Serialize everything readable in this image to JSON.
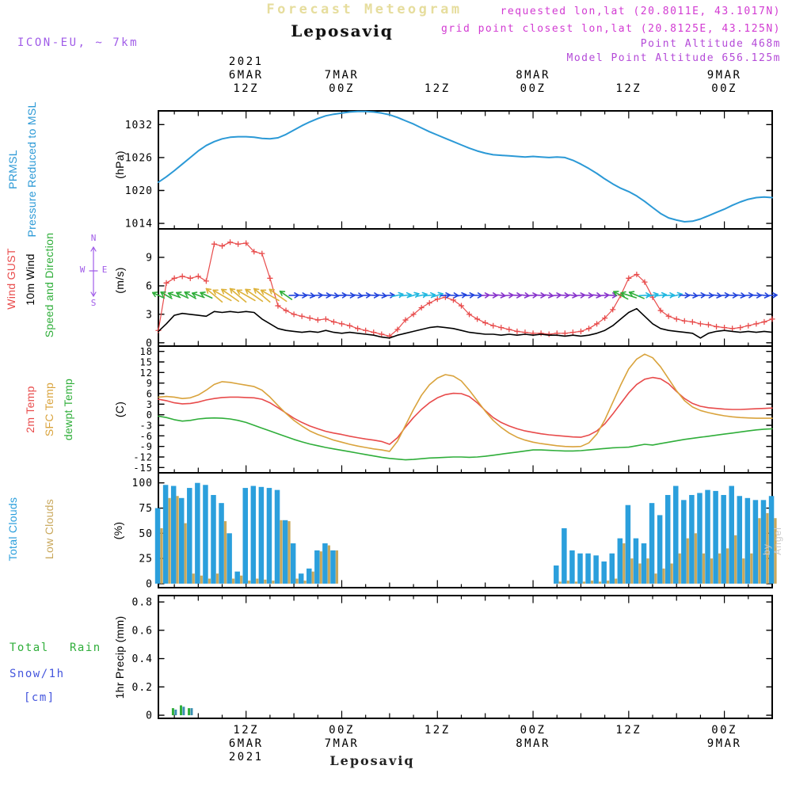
{
  "header": {
    "app_title": "Forecast Meteogram",
    "station": "Leposaviq",
    "model": "ICON-EU, ~ 7km",
    "requested": "requested lon,lat (20.8011E, 43.1017N)",
    "grid_point": "grid point closest lon,lat (20.8125E, 43.125N)",
    "point_altitude": "Point Altitude 468m",
    "model_point_altitude": "Model Point Altitude 656.125m"
  },
  "footer": {
    "station": "Leposaviq"
  },
  "watermark": "by Angel",
  "panel_labels": {
    "pressure": {
      "l1": "PRMSL",
      "l2": "Pressure Reduced to MSL",
      "unit": "(hPa)"
    },
    "wind": {
      "l1": "Wind GUST",
      "l2": "10m Wind",
      "l3": "Speed and Direction",
      "unit": "(m/s)",
      "compass": {
        "n": "N",
        "s": "S",
        "w": "W",
        "e": "E"
      }
    },
    "temp": {
      "l1": "2m Temp",
      "l2": "SFC Temp",
      "l3": "dewpt Temp",
      "unit": "(C)"
    },
    "clouds": {
      "l1": "Total Clouds",
      "l2": "Low Clouds",
      "unit": "(%)"
    },
    "precip": {
      "l1": "Total",
      "l2": "Rain",
      "l3": "Snow/1h",
      "l4": "[cm]",
      "unit": "1hr Precip (mm)"
    }
  },
  "colors": {
    "pressure": "#2b99d6",
    "gust": "#e84b4b",
    "wind10m": "#000000",
    "wind_dir_label": "#2fae3a",
    "t2m": "#e84b4b",
    "sfc": "#d9a33c",
    "dewpt": "#2fae3a",
    "total_clouds": "#2b9fdc",
    "low_clouds": "#c9a85c",
    "rain": "#2fae3a",
    "snow": "#3a8fb0",
    "snow_label": "#4455dd",
    "magenta": "#d23bd2",
    "purple": "#b44ad8",
    "model_tag": "#a05ce8",
    "app_title": "#e6dd9d",
    "compass": "#a05ce8",
    "watermark": "#c9c9c9",
    "axis": "#000000"
  },
  "chart_data": {
    "type": "line",
    "subtype": "multi-panel-meteogram",
    "title": "Forecast Meteogram - Leposaviq",
    "x_axis": {
      "start": "6MAR2021 01Z",
      "end": "9MAR2021 06Z",
      "step_hours": 1,
      "n": 78
    },
    "top_axis": [
      {
        "t": 12,
        "lines": [
          "2021",
          "6MAR",
          "12Z"
        ]
      },
      {
        "t": 24,
        "lines": [
          "7MAR",
          "00Z"
        ]
      },
      {
        "t": 36,
        "lines": [
          "12Z"
        ]
      },
      {
        "t": 48,
        "lines": [
          "8MAR",
          "00Z"
        ]
      },
      {
        "t": 60,
        "lines": [
          "12Z"
        ]
      },
      {
        "t": 72,
        "lines": [
          "9MAR",
          "00Z"
        ]
      }
    ],
    "bottom_axis": [
      {
        "t": 12,
        "lines": [
          "12Z",
          "6MAR",
          "2021"
        ]
      },
      {
        "t": 24,
        "lines": [
          "00Z",
          "7MAR"
        ]
      },
      {
        "t": 36,
        "lines": [
          "12Z"
        ]
      },
      {
        "t": 48,
        "lines": [
          "00Z",
          "8MAR"
        ]
      },
      {
        "t": 60,
        "lines": [
          "12Z"
        ]
      },
      {
        "t": 72,
        "lines": [
          "00Z",
          "9MAR"
        ]
      }
    ],
    "panels": {
      "pressure": {
        "ylabel": "(hPa)",
        "ticks": [
          1014,
          1020,
          1026,
          1032
        ],
        "ylim": [
          1013.0,
          1034.5
        ],
        "series": [
          {
            "name": "PRMSL",
            "color": "#2b99d6",
            "values": [
              1021.5,
              1022.5,
              1023.6,
              1024.8,
              1026.0,
              1027.2,
              1028.2,
              1028.9,
              1029.4,
              1029.7,
              1029.8,
              1029.8,
              1029.7,
              1029.5,
              1029.4,
              1029.6,
              1030.2,
              1031.0,
              1031.8,
              1032.5,
              1033.1,
              1033.6,
              1033.9,
              1034.1,
              1034.3,
              1034.4,
              1034.4,
              1034.3,
              1034.1,
              1033.8,
              1033.3,
              1032.7,
              1032.1,
              1031.4,
              1030.7,
              1030.1,
              1029.5,
              1028.9,
              1028.3,
              1027.7,
              1027.2,
              1026.8,
              1026.5,
              1026.4,
              1026.3,
              1026.2,
              1026.1,
              1026.2,
              1026.1,
              1026.0,
              1026.1,
              1026.0,
              1025.5,
              1024.8,
              1024.0,
              1023.1,
              1022.1,
              1021.2,
              1020.4,
              1019.8,
              1019.0,
              1018.0,
              1016.9,
              1015.8,
              1015.0,
              1014.6,
              1014.3,
              1014.4,
              1014.8,
              1015.4,
              1016.0,
              1016.6,
              1017.3,
              1017.9,
              1018.4,
              1018.7,
              1018.8,
              1018.7
            ]
          }
        ]
      },
      "wind": {
        "ylabel": "(m/s)",
        "ticks": [
          0,
          3,
          6,
          9
        ],
        "ylim": [
          -0.35,
          12.0
        ],
        "series": [
          {
            "name": "Wind GUST",
            "color": "#e84b4b",
            "marker": "plus",
            "values": [
              1.3,
              6.3,
              6.8,
              7.0,
              6.8,
              7.0,
              6.5,
              10.4,
              10.2,
              10.6,
              10.4,
              10.5,
              9.6,
              9.4,
              6.8,
              3.9,
              3.4,
              3.0,
              2.8,
              2.6,
              2.4,
              2.5,
              2.2,
              2.0,
              1.8,
              1.5,
              1.3,
              1.1,
              0.9,
              0.7,
              1.4,
              2.4,
              3.0,
              3.7,
              4.2,
              4.6,
              4.8,
              4.5,
              3.9,
              3.0,
              2.5,
              2.1,
              1.8,
              1.6,
              1.4,
              1.2,
              1.1,
              1.0,
              1.0,
              0.9,
              1.0,
              1.0,
              1.1,
              1.2,
              1.5,
              2.0,
              2.6,
              3.5,
              5.0,
              6.8,
              7.2,
              6.4,
              4.8,
              3.4,
              2.8,
              2.5,
              2.3,
              2.2,
              2.0,
              1.9,
              1.7,
              1.6,
              1.5,
              1.6,
              1.8,
              2.0,
              2.2,
              2.5
            ]
          },
          {
            "name": "10m Wind",
            "color": "#000000",
            "values": [
              1.2,
              2.0,
              2.9,
              3.1,
              3.0,
              2.9,
              2.8,
              3.3,
              3.2,
              3.3,
              3.2,
              3.3,
              3.2,
              2.5,
              2.0,
              1.5,
              1.3,
              1.2,
              1.1,
              1.2,
              1.1,
              1.3,
              1.1,
              1.0,
              1.1,
              1.0,
              0.9,
              0.8,
              0.6,
              0.5,
              0.8,
              1.0,
              1.2,
              1.4,
              1.6,
              1.7,
              1.6,
              1.5,
              1.3,
              1.1,
              1.0,
              0.9,
              0.9,
              0.8,
              0.9,
              0.8,
              0.9,
              0.8,
              0.9,
              0.8,
              0.8,
              0.7,
              0.8,
              0.7,
              0.8,
              1.0,
              1.3,
              1.8,
              2.5,
              3.2,
              3.6,
              2.8,
              2.0,
              1.5,
              1.3,
              1.2,
              1.1,
              1.0,
              0.5,
              1.0,
              1.2,
              1.3,
              1.2,
              1.1,
              1.2,
              1.1,
              1.2,
              1.1
            ]
          }
        ],
        "direction_arrows": {
          "y_value": 5,
          "segments": [
            {
              "from": 1,
              "to": 7,
              "color": "#2fae3a",
              "rot": 205,
              "len": 16
            },
            {
              "from": 8,
              "to": 16,
              "color": "#ddb23a",
              "rot": 215,
              "len": 26
            },
            {
              "from": 17,
              "to": 17,
              "color": "#2fae3a",
              "rot": 210,
              "len": 18
            },
            {
              "from": 18,
              "to": 30,
              "color": "#2244dd",
              "rot": 3,
              "len": 12
            },
            {
              "from": 31,
              "to": 36,
              "color": "#22b8e0",
              "rot": -12,
              "len": 14
            },
            {
              "from": 37,
              "to": 41,
              "color": "#2244dd",
              "rot": -4,
              "len": 12
            },
            {
              "from": 42,
              "to": 58,
              "color": "#8833cc",
              "rot": 2,
              "len": 10
            },
            {
              "from": 59,
              "to": 61,
              "color": "#2fae3a",
              "rot": 203,
              "len": 20
            },
            {
              "from": 62,
              "to": 66,
              "color": "#22b8e0",
              "rot": -8,
              "len": 14
            },
            {
              "from": 67,
              "to": 78,
              "color": "#2244dd",
              "rot": 2,
              "len": 12
            }
          ]
        }
      },
      "temp": {
        "ylabel": "(C)",
        "ticks": [
          -15,
          -12,
          -9,
          -6,
          -3,
          0,
          3,
          6,
          9,
          12,
          15,
          18
        ],
        "ylim": [
          -16.5,
          19.5
        ],
        "series": [
          {
            "name": "2m Temp",
            "color": "#e84b4b",
            "values": [
              4.4,
              4.0,
              3.4,
              3.1,
              3.2,
              3.6,
              4.2,
              4.6,
              4.9,
              5.0,
              5.0,
              4.9,
              4.8,
              4.4,
              3.4,
              2.0,
              0.5,
              -1.0,
              -2.2,
              -3.2,
              -4.0,
              -4.7,
              -5.2,
              -5.6,
              -6.1,
              -6.5,
              -6.9,
              -7.2,
              -7.6,
              -8.4,
              -6.5,
              -3.5,
              -0.8,
              1.5,
              3.4,
              4.8,
              5.7,
              6.1,
              6.0,
              5.2,
              3.4,
              1.2,
              -0.8,
              -2.2,
              -3.2,
              -4.0,
              -4.6,
              -5.0,
              -5.4,
              -5.7,
              -5.9,
              -6.1,
              -6.3,
              -6.4,
              -5.8,
              -4.6,
              -2.6,
              0.2,
              3.2,
              6.2,
              8.6,
              10.1,
              10.6,
              10.2,
              8.8,
              6.6,
              4.6,
              3.2,
              2.4,
              2.0,
              1.8,
              1.6,
              1.5,
              1.5,
              1.6,
              1.7,
              1.8,
              1.9
            ]
          },
          {
            "name": "SFC Temp",
            "color": "#d9a33c",
            "values": [
              5.0,
              5.2,
              5.0,
              4.6,
              4.8,
              5.6,
              7.0,
              8.6,
              9.4,
              9.2,
              8.8,
              8.4,
              8.0,
              7.0,
              5.0,
              2.6,
              0.4,
              -1.6,
              -3.2,
              -4.6,
              -5.6,
              -6.4,
              -7.2,
              -7.8,
              -8.4,
              -8.9,
              -9.3,
              -9.7,
              -10.0,
              -10.4,
              -7.5,
              -3.0,
              1.5,
              5.5,
              8.5,
              10.4,
              11.4,
              11.0,
              9.6,
              7.0,
              4.0,
              1.0,
              -1.6,
              -3.6,
              -5.2,
              -6.4,
              -7.2,
              -7.8,
              -8.2,
              -8.5,
              -8.8,
              -9.0,
              -9.1,
              -9.0,
              -8.0,
              -5.5,
              -1.5,
              3.5,
              8.5,
              13.0,
              15.8,
              17.2,
              16.2,
              13.6,
              10.2,
              6.8,
              4.0,
              2.2,
              1.2,
              0.6,
              0.1,
              -0.3,
              -0.6,
              -0.8,
              -0.9,
              -1.0,
              -1.0,
              -1.0
            ]
          },
          {
            "name": "dewpt Temp",
            "color": "#2fae3a",
            "values": [
              -0.4,
              -0.8,
              -1.4,
              -1.8,
              -1.6,
              -1.2,
              -1.0,
              -0.9,
              -1.0,
              -1.2,
              -1.6,
              -2.2,
              -3.0,
              -3.8,
              -4.6,
              -5.4,
              -6.2,
              -7.0,
              -7.7,
              -8.3,
              -8.8,
              -9.3,
              -9.7,
              -10.1,
              -10.5,
              -10.9,
              -11.3,
              -11.7,
              -12.1,
              -12.4,
              -12.6,
              -12.8,
              -12.7,
              -12.5,
              -12.3,
              -12.2,
              -12.1,
              -12.0,
              -12.0,
              -12.1,
              -12.0,
              -11.8,
              -11.5,
              -11.2,
              -10.9,
              -10.6,
              -10.3,
              -10.0,
              -10.0,
              -10.1,
              -10.2,
              -10.3,
              -10.3,
              -10.2,
              -10.0,
              -9.8,
              -9.6,
              -9.4,
              -9.3,
              -9.2,
              -8.8,
              -8.4,
              -8.6,
              -8.2,
              -7.8,
              -7.4,
              -7.0,
              -6.7,
              -6.4,
              -6.1,
              -5.8,
              -5.5,
              -5.2,
              -4.9,
              -4.6,
              -4.3,
              -4.1,
              -4.0
            ]
          }
        ]
      },
      "clouds": {
        "ylabel": "(%)",
        "ticks": [
          0,
          25,
          50,
          75,
          100
        ],
        "ylim": [
          -4,
          110
        ],
        "series": [
          {
            "name": "Total Clouds",
            "type": "bar",
            "color": "#2b9fdc",
            "values": [
              75,
              98,
              97,
              85,
              95,
              100,
              98,
              88,
              80,
              50,
              12,
              95,
              97,
              96,
              95,
              93,
              63,
              40,
              10,
              15,
              33,
              40,
              33,
              0,
              0,
              0,
              0,
              0,
              0,
              0,
              0,
              0,
              0,
              0,
              0,
              0,
              0,
              0,
              0,
              0,
              0,
              0,
              0,
              0,
              0,
              0,
              0,
              0,
              0,
              0,
              18,
              55,
              33,
              30,
              30,
              28,
              22,
              30,
              45,
              78,
              45,
              40,
              80,
              68,
              88,
              97,
              83,
              88,
              90,
              93,
              92,
              88,
              97,
              87,
              85,
              83,
              83,
              87
            ]
          },
          {
            "name": "Low Clouds",
            "type": "bar",
            "color": "#c9a85c",
            "values": [
              55,
              85,
              87,
              60,
              10,
              8,
              5,
              10,
              62,
              5,
              8,
              3,
              5,
              4,
              3,
              63,
              62,
              5,
              3,
              12,
              32,
              38,
              33,
              0,
              0,
              0,
              0,
              0,
              0,
              0,
              0,
              0,
              0,
              0,
              0,
              0,
              0,
              0,
              0,
              0,
              0,
              0,
              0,
              0,
              0,
              0,
              0,
              0,
              0,
              0,
              2,
              3,
              2,
              2,
              3,
              2,
              3,
              5,
              40,
              25,
              20,
              25,
              10,
              15,
              20,
              30,
              45,
              50,
              30,
              25,
              30,
              35,
              48,
              25,
              30,
              65,
              70,
              65
            ]
          }
        ]
      },
      "precip": {
        "ylabel": "1hr Precip (mm)",
        "ticks": [
          0,
          0.2,
          0.4,
          0.6,
          0.8
        ],
        "ylim": [
          -0.022,
          0.845
        ],
        "bars": [
          {
            "t": 3,
            "rain": 0.05,
            "snow": 0.04
          },
          {
            "t": 4,
            "rain": 0.07,
            "snow": 0.06
          },
          {
            "t": 5,
            "rain": 0.05,
            "snow": 0.05
          }
        ]
      }
    }
  }
}
